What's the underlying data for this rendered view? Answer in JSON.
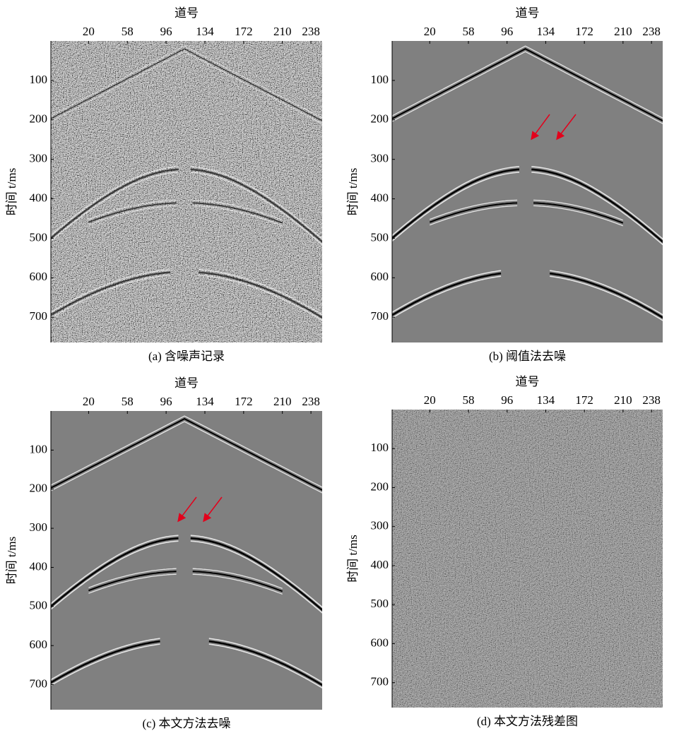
{
  "chart_data": [
    {
      "type": "seismic",
      "caption": "(a) 含噪声记录",
      "xlabel": "道号",
      "ylabel": "时间 t/ms",
      "xlim": [
        -17,
        249
      ],
      "xticks": [
        20,
        58,
        96,
        134,
        172,
        210,
        238
      ],
      "ylim": [
        0,
        764
      ],
      "yticks": [
        100,
        200,
        300,
        400,
        500,
        600,
        700
      ]
    },
    {
      "type": "seismic",
      "caption": "(b) 阈值法去噪",
      "xlabel": "道号",
      "ylabel": "时间 t/ms",
      "xlim": [
        -17,
        249
      ],
      "xticks": [
        20,
        58,
        96,
        134,
        172,
        210,
        238
      ],
      "ylim": [
        0,
        764
      ],
      "yticks": [
        100,
        200,
        300,
        400,
        500,
        600,
        700
      ]
    },
    {
      "type": "seismic",
      "caption": "(c) 本文方法去噪",
      "xlabel": "道号",
      "ylabel": "时间 t/ms",
      "xlim": [
        -17,
        249
      ],
      "xticks": [
        20,
        58,
        96,
        134,
        172,
        210,
        238
      ],
      "ylim": [
        0,
        764
      ],
      "yticks": [
        100,
        200,
        300,
        400,
        500,
        600,
        700
      ]
    },
    {
      "type": "seismic",
      "caption": "(d) 本文方法残差图",
      "xlabel": "道号",
      "ylabel": "时间 t/ms",
      "xlim": [
        -17,
        249
      ],
      "xticks": [
        20,
        58,
        96,
        134,
        172,
        210,
        238
      ],
      "ylim": [
        0,
        764
      ],
      "yticks": [
        100,
        200,
        300,
        400,
        500,
        600,
        700
      ]
    }
  ]
}
